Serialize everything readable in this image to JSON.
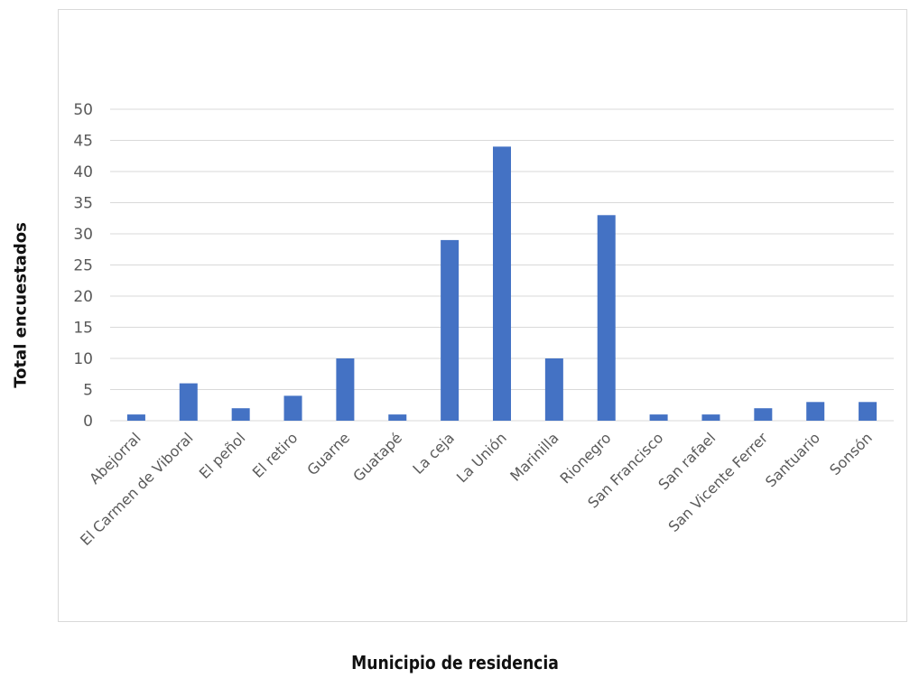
{
  "chart_data": {
    "type": "bar",
    "categories": [
      "Abejorral",
      "El Carmen de Viboral",
      "El peñol",
      "El retiro",
      "Guarne",
      "Guatapé",
      "La ceja",
      "La Unión",
      "Marinilla",
      "Rionegro",
      "San Francisco",
      "San rafael",
      "San Vicente Ferrer",
      "Santuario",
      "Sonsón"
    ],
    "values": [
      1,
      6,
      2,
      4,
      10,
      1,
      29,
      44,
      10,
      33,
      1,
      1,
      2,
      3,
      3
    ],
    "ylim": [
      0,
      50
    ],
    "yticks": [
      0,
      5,
      10,
      15,
      20,
      25,
      30,
      35,
      40,
      45,
      50
    ],
    "xlabel": "Municipio de residencia",
    "ylabel": "Total encuestados",
    "grid": true,
    "bar_color": "#4472C4",
    "grid_color": "#d9d9d9"
  }
}
